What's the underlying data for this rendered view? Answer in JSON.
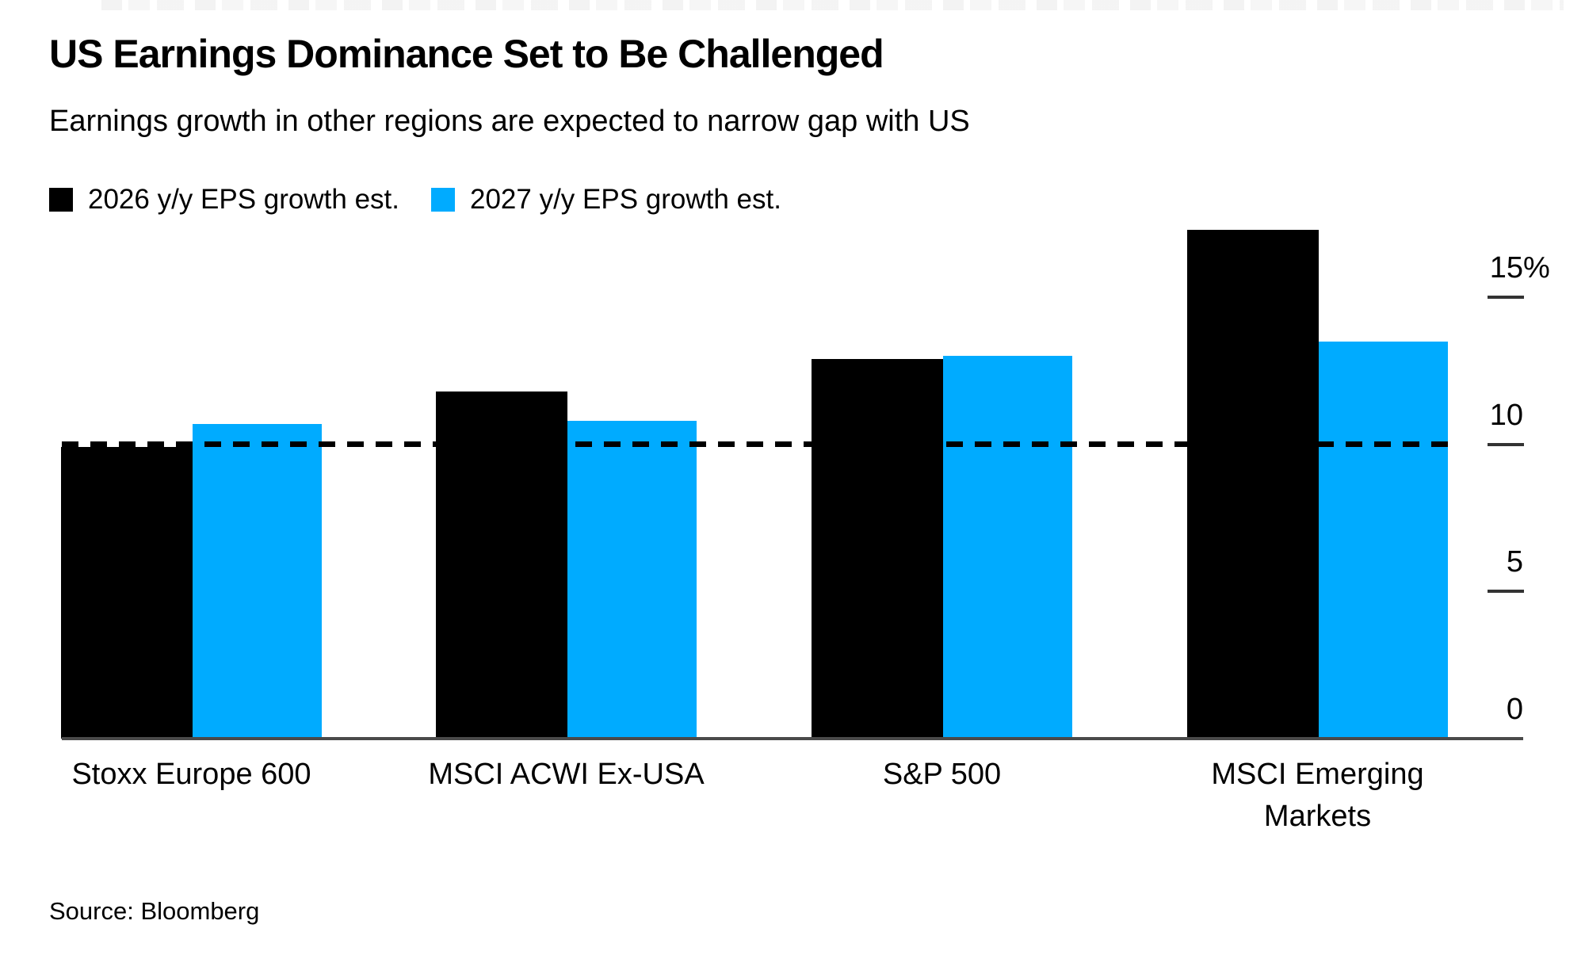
{
  "chart_data": {
    "type": "bar",
    "title": "US Earnings Dominance Set to Be Challenged",
    "subtitle": "Earnings growth in other regions are expected to narrow gap with US",
    "categories": [
      "Stoxx Europe 600",
      "MSCI ACWI Ex-USA",
      "S&P 500",
      "MSCI Emerging\nMarkets"
    ],
    "series": [
      {
        "name": "2026 y/y EPS growth est.",
        "color": "#000000",
        "values": [
          9.9,
          11.8,
          12.9,
          17.3
        ]
      },
      {
        "name": "2027 y/y EPS growth est.",
        "color": "#00abff",
        "values": [
          10.7,
          10.8,
          13.0,
          13.5
        ]
      }
    ],
    "unit": "%",
    "y_axis": {
      "side": "right",
      "ticks": [
        0,
        5,
        10,
        15
      ],
      "tick_labels": [
        "0",
        "5",
        "10",
        "15%"
      ],
      "visible_range": [
        0,
        17.5
      ]
    },
    "reference_line": {
      "value": 10,
      "style": "dashed",
      "color": "#000000"
    },
    "legend_position": "top-left",
    "grid": false,
    "source": "Source: Bloomberg"
  }
}
